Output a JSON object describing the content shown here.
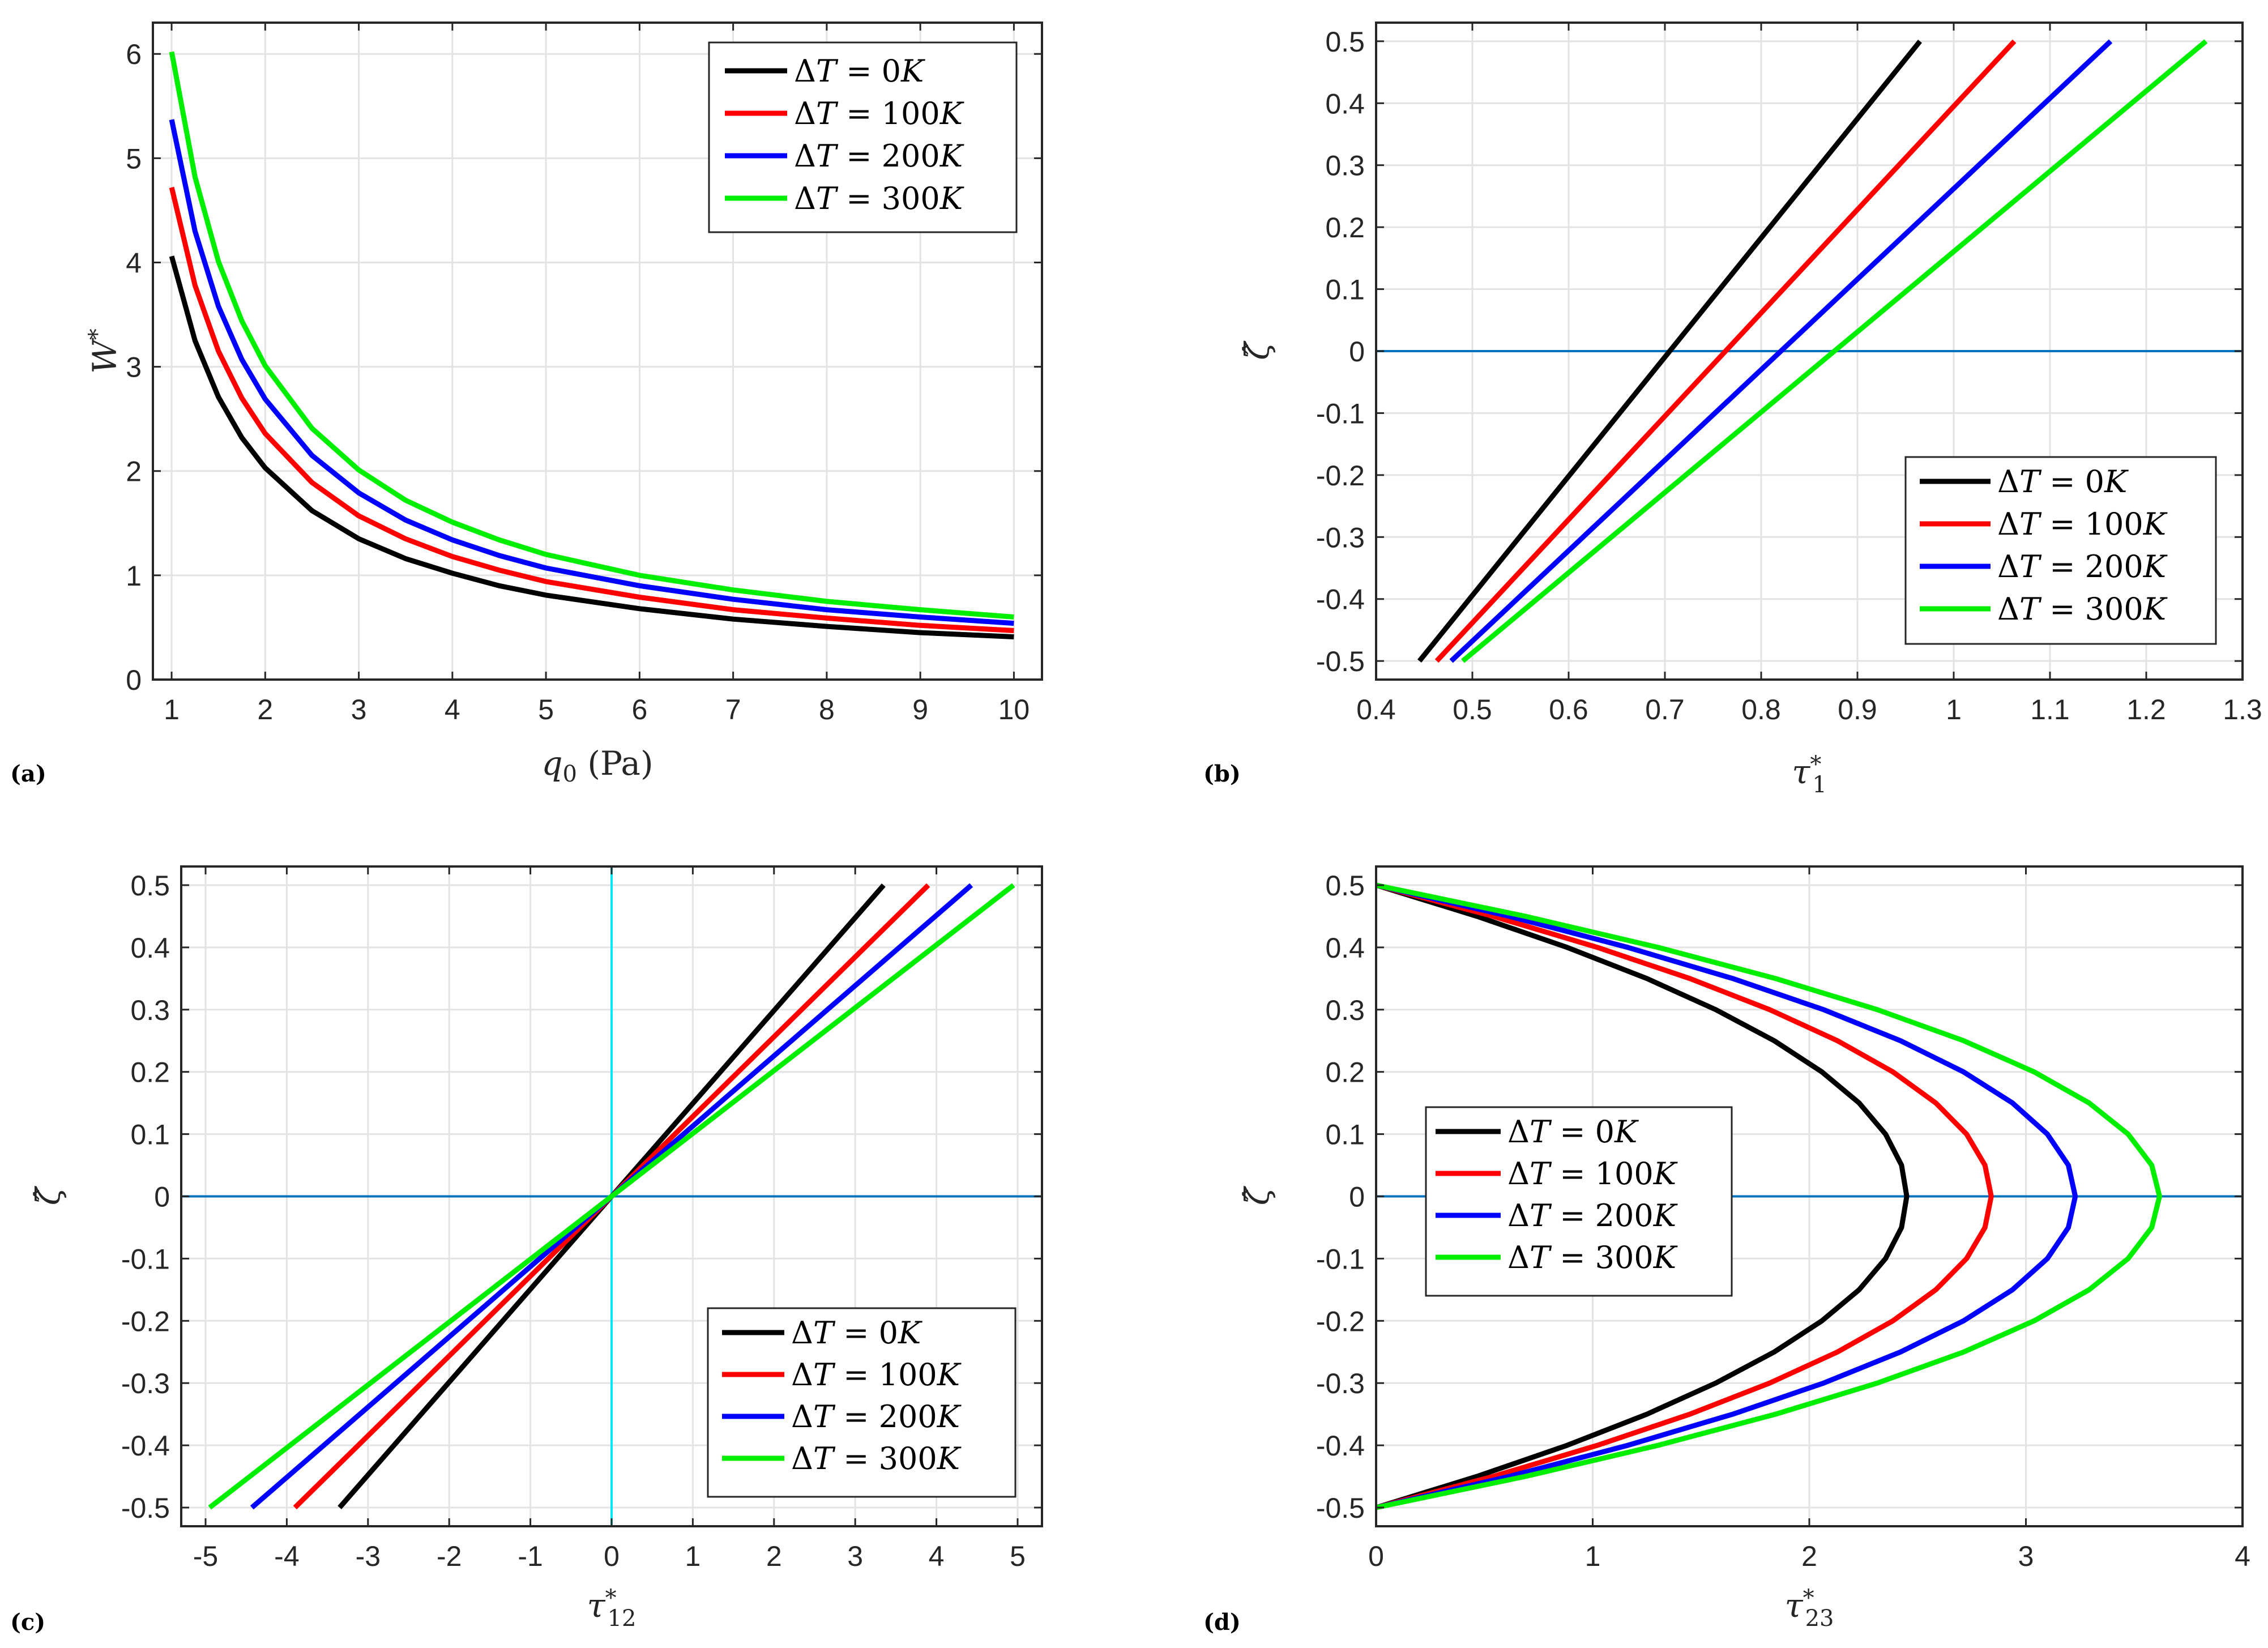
{
  "chart_data": [
    {
      "panel": "(a)",
      "type": "line",
      "xlabel": "q0 (Pa)",
      "ylabel": "W*",
      "xlim": [
        0.8,
        10.3
      ],
      "ylim": [
        0,
        6.3
      ],
      "xticks": [
        1,
        2,
        3,
        4,
        5,
        6,
        7,
        8,
        9,
        10
      ],
      "yticks": [
        0,
        1,
        2,
        3,
        4,
        5,
        6
      ],
      "xtick_labels": [
        "1",
        "2",
        "3",
        "4",
        "5",
        "6",
        "7",
        "8",
        "9",
        "10"
      ],
      "ytick_labels": [
        "0",
        "1",
        "2",
        "3",
        "4",
        "5",
        "6"
      ],
      "grid": true,
      "legend_position": "top-right",
      "reference_lines": [],
      "x": [
        1,
        1.25,
        1.5,
        1.75,
        2,
        2.5,
        3,
        3.5,
        4,
        4.5,
        5,
        6,
        7,
        8,
        9,
        10
      ],
      "series": [
        {
          "name": "ΔT = 0K",
          "color": "#000000",
          "values": [
            4.06,
            3.25,
            2.71,
            2.32,
            2.03,
            1.62,
            1.35,
            1.16,
            1.02,
            0.9,
            0.81,
            0.68,
            0.58,
            0.51,
            0.45,
            0.41
          ]
        },
        {
          "name": "ΔT = 100K",
          "color": "#ff0000",
          "values": [
            4.72,
            3.78,
            3.15,
            2.7,
            2.36,
            1.89,
            1.57,
            1.35,
            1.18,
            1.05,
            0.94,
            0.79,
            0.67,
            0.59,
            0.52,
            0.47
          ]
        },
        {
          "name": "ΔT = 200K",
          "color": "#0000ff",
          "values": [
            5.37,
            4.3,
            3.58,
            3.07,
            2.69,
            2.15,
            1.79,
            1.53,
            1.34,
            1.19,
            1.07,
            0.9,
            0.77,
            0.67,
            0.6,
            0.54
          ]
        },
        {
          "name": "ΔT = 300K",
          "color": "#00ee00",
          "values": [
            6.02,
            4.82,
            4.01,
            3.44,
            3.01,
            2.41,
            2.01,
            1.72,
            1.51,
            1.34,
            1.2,
            1.0,
            0.86,
            0.75,
            0.67,
            0.6
          ]
        }
      ]
    },
    {
      "panel": "(b)",
      "type": "line",
      "xlabel": "τ1*",
      "ylabel": "ζ̂",
      "xlim": [
        0.4,
        1.3
      ],
      "ylim": [
        -0.53,
        0.53
      ],
      "xticks": [
        0.4,
        0.5,
        0.6,
        0.7,
        0.8,
        0.9,
        1,
        1.1,
        1.2,
        1.3
      ],
      "yticks": [
        -0.5,
        -0.4,
        -0.3,
        -0.2,
        -0.1,
        0,
        0.1,
        0.2,
        0.3,
        0.4,
        0.5
      ],
      "xtick_labels": [
        "0.4",
        "0.5",
        "0.6",
        "0.7",
        "0.8",
        "0.9",
        "1",
        "1.1",
        "1.2",
        "1.3"
      ],
      "ytick_labels": [
        "-0.5",
        "-0.4",
        "-0.3",
        "-0.2",
        "-0.1",
        "0",
        "0.1",
        "0.2",
        "0.3",
        "0.4",
        "0.5"
      ],
      "grid": true,
      "legend_position": "bottom-right",
      "reference_lines": [
        {
          "orientation": "horizontal",
          "value": 0,
          "color": "#0072bd"
        }
      ],
      "series": [
        {
          "name": "ΔT = 0K",
          "color": "#000000",
          "x": [
            0.445,
            0.965
          ],
          "y": [
            -0.5,
            0.5
          ]
        },
        {
          "name": "ΔT = 100K",
          "color": "#ff0000",
          "x": [
            0.463,
            1.063
          ],
          "y": [
            -0.5,
            0.5
          ]
        },
        {
          "name": "ΔT = 200K",
          "color": "#0000ff",
          "x": [
            0.478,
            1.163
          ],
          "y": [
            -0.5,
            0.5
          ]
        },
        {
          "name": "ΔT = 300K",
          "color": "#00ee00",
          "x": [
            0.49,
            1.262
          ],
          "y": [
            -0.5,
            0.5
          ]
        }
      ]
    },
    {
      "panel": "(c)",
      "type": "line",
      "xlabel": "τ12*",
      "ylabel": "ζ̂",
      "xlim": [
        -5.3,
        5.3
      ],
      "ylim": [
        -0.53,
        0.53
      ],
      "xticks": [
        -5,
        -4,
        -3,
        -2,
        -1,
        0,
        1,
        2,
        3,
        4,
        5
      ],
      "yticks": [
        -0.5,
        -0.4,
        -0.3,
        -0.2,
        -0.1,
        0,
        0.1,
        0.2,
        0.3,
        0.4,
        0.5
      ],
      "xtick_labels": [
        "-5",
        "-4",
        "-3",
        "-2",
        "-1",
        "0",
        "1",
        "2",
        "3",
        "4",
        "5"
      ],
      "ytick_labels": [
        "-0.5",
        "-0.4",
        "-0.3",
        "-0.2",
        "-0.1",
        "0",
        "0.1",
        "0.2",
        "0.3",
        "0.4",
        "0.5"
      ],
      "grid": true,
      "legend_position": "bottom-right",
      "reference_lines": [
        {
          "orientation": "horizontal",
          "value": 0,
          "color": "#0072bd"
        },
        {
          "orientation": "vertical",
          "value": 0,
          "color": "#00e5ff"
        }
      ],
      "series": [
        {
          "name": "ΔT = 0K",
          "color": "#000000",
          "x": [
            -3.35,
            3.35
          ],
          "y": [
            -0.5,
            0.5
          ]
        },
        {
          "name": "ΔT = 100K",
          "color": "#ff0000",
          "x": [
            -3.9,
            3.9
          ],
          "y": [
            -0.5,
            0.5
          ]
        },
        {
          "name": "ΔT = 200K",
          "color": "#0000ff",
          "x": [
            -4.43,
            4.43
          ],
          "y": [
            -0.5,
            0.5
          ]
        },
        {
          "name": "ΔT = 300K",
          "color": "#00ee00",
          "x": [
            -4.95,
            4.95
          ],
          "y": [
            -0.5,
            0.5
          ]
        }
      ]
    },
    {
      "panel": "(d)",
      "type": "line",
      "xlabel": "τ23*",
      "ylabel": "ζ̂",
      "xlim": [
        0,
        4
      ],
      "ylim": [
        -0.53,
        0.53
      ],
      "xticks": [
        0,
        1,
        2,
        3,
        4
      ],
      "yticks": [
        -0.5,
        -0.4,
        -0.3,
        -0.2,
        -0.1,
        0,
        0.1,
        0.2,
        0.3,
        0.4,
        0.5
      ],
      "xtick_labels": [
        "0",
        "1",
        "2",
        "3",
        "4"
      ],
      "ytick_labels": [
        "-0.5",
        "-0.4",
        "-0.3",
        "-0.2",
        "-0.1",
        "0",
        "0.1",
        "0.2",
        "0.3",
        "0.4",
        "0.5"
      ],
      "grid": true,
      "legend_position": "middle-left",
      "reference_lines": [
        {
          "orientation": "horizontal",
          "value": 0,
          "color": "#0072bd"
        }
      ],
      "y": [
        -0.5,
        -0.45,
        -0.4,
        -0.35,
        -0.3,
        -0.25,
        -0.2,
        -0.15,
        -0.1,
        -0.05,
        0,
        0.05,
        0.1,
        0.15,
        0.2,
        0.25,
        0.3,
        0.35,
        0.4,
        0.45,
        0.5
      ],
      "series": [
        {
          "name": "ΔT = 0K",
          "color": "#000000",
          "x": [
            0,
            0.465,
            0.882,
            1.25,
            1.568,
            1.838,
            2.058,
            2.23,
            2.352,
            2.426,
            2.45,
            2.426,
            2.352,
            2.23,
            2.058,
            1.838,
            1.568,
            1.25,
            0.882,
            0.465,
            0
          ]
        },
        {
          "name": "ΔT = 100K",
          "color": "#ff0000",
          "x": [
            0,
            0.54,
            1.022,
            1.448,
            1.817,
            2.13,
            2.386,
            2.584,
            2.726,
            2.811,
            2.84,
            2.811,
            2.726,
            2.584,
            2.386,
            2.13,
            1.817,
            1.448,
            1.022,
            0.54,
            0
          ]
        },
        {
          "name": "ΔT = 200K",
          "color": "#0000ff",
          "x": [
            0,
            0.614,
            1.162,
            1.646,
            2.066,
            2.421,
            2.712,
            2.938,
            3.099,
            3.196,
            3.228,
            3.196,
            3.099,
            2.938,
            2.712,
            2.421,
            2.066,
            1.646,
            1.162,
            0.614,
            0
          ]
        },
        {
          "name": "ΔT = 300K",
          "color": "#00ee00",
          "x": [
            0,
            0.688,
            1.302,
            1.844,
            2.314,
            2.713,
            3.038,
            3.292,
            3.472,
            3.581,
            3.617,
            3.581,
            3.472,
            3.292,
            3.038,
            2.713,
            2.314,
            1.844,
            1.302,
            0.688,
            0
          ]
        }
      ]
    }
  ]
}
